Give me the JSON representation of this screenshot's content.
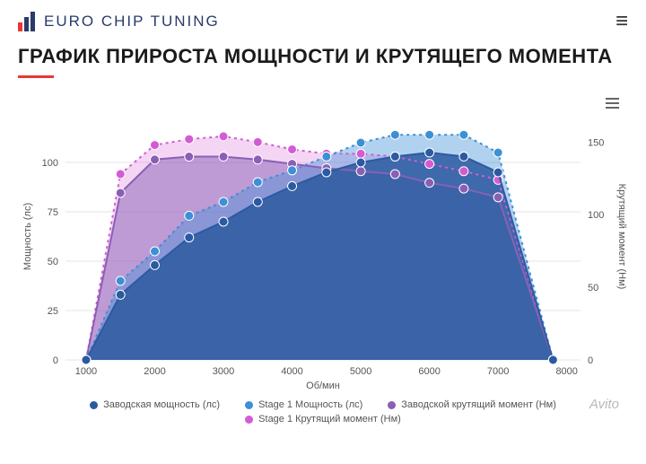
{
  "header": {
    "brand": "EURO CHIP TUNING"
  },
  "page": {
    "title": "ГРАФИК ПРИРОСТА МОЩНОСТИ И КРУТЯЩЕГО МОМЕНТА",
    "underline_color": "#e53935"
  },
  "watermark": "Avito",
  "chart": {
    "type": "line-area-dual-axis",
    "background_color": "#ffffff",
    "grid_color": "#e5e5e5",
    "axis_text_color": "#555555",
    "x_axis": {
      "label": "Об/мин",
      "ticks": [
        1000,
        2000,
        3000,
        4000,
        5000,
        6000,
        7000,
        8000
      ],
      "min": 700,
      "max": 8200
    },
    "y_left": {
      "label": "Мощность (лс)",
      "ticks": [
        0,
        25,
        50,
        75,
        100
      ],
      "min": 0,
      "max": 125
    },
    "y_right": {
      "label": "Крутящий момент (Нм)",
      "ticks": [
        0,
        50,
        100,
        150
      ],
      "min": 0,
      "max": 170
    },
    "series": [
      {
        "id": "power_stock",
        "legend": "Заводская мощность (лс)",
        "color": "#2c5aa0",
        "fill": "#2c5aa0",
        "fill_opacity": 0.85,
        "line_style": "solid",
        "marker": "circle",
        "marker_size": 5,
        "axis": "left",
        "x": [
          1000,
          1500,
          2000,
          2500,
          3000,
          3500,
          4000,
          4500,
          5000,
          5500,
          6000,
          6500,
          7000,
          7800
        ],
        "y": [
          0,
          33,
          48,
          62,
          70,
          80,
          88,
          95,
          100,
          103,
          105,
          103,
          95,
          0
        ]
      },
      {
        "id": "power_stage1",
        "legend": "Stage 1 Мощность (лс)",
        "color": "#3d8fd6",
        "fill": "#3d8fd6",
        "fill_opacity": 0.4,
        "line_style": "dotted",
        "marker": "circle",
        "marker_size": 5,
        "axis": "left",
        "x": [
          1000,
          1500,
          2000,
          2500,
          3000,
          3500,
          4000,
          4500,
          5000,
          5500,
          6000,
          6500,
          7000,
          7800
        ],
        "y": [
          0,
          40,
          55,
          73,
          80,
          90,
          96,
          103,
          110,
          114,
          114,
          114,
          105,
          0
        ]
      },
      {
        "id": "torque_stock",
        "legend": "Заводской крутящий момент (Нм)",
        "color": "#8a5fb5",
        "fill": "#8a5fb5",
        "fill_opacity": 0.5,
        "line_style": "solid",
        "marker": "circle",
        "marker_size": 5,
        "axis": "right",
        "x": [
          1000,
          1500,
          2000,
          2500,
          3000,
          3500,
          4000,
          4500,
          5000,
          5500,
          6000,
          6500,
          7000,
          7800
        ],
        "y": [
          0,
          115,
          138,
          140,
          140,
          138,
          135,
          132,
          130,
          128,
          122,
          118,
          112,
          0
        ]
      },
      {
        "id": "torque_stage1",
        "legend": "Stage 1 Крутящий момент (Нм)",
        "color": "#d45bd4",
        "fill": "#d45bd4",
        "fill_opacity": 0.25,
        "line_style": "dotted",
        "marker": "circle",
        "marker_size": 5,
        "axis": "right",
        "x": [
          1000,
          1500,
          2000,
          2500,
          3000,
          3500,
          4000,
          4500,
          5000,
          5500,
          6000,
          6500,
          7000,
          7800
        ],
        "y": [
          0,
          128,
          148,
          152,
          154,
          150,
          145,
          142,
          142,
          140,
          135,
          130,
          124,
          0
        ]
      }
    ]
  }
}
